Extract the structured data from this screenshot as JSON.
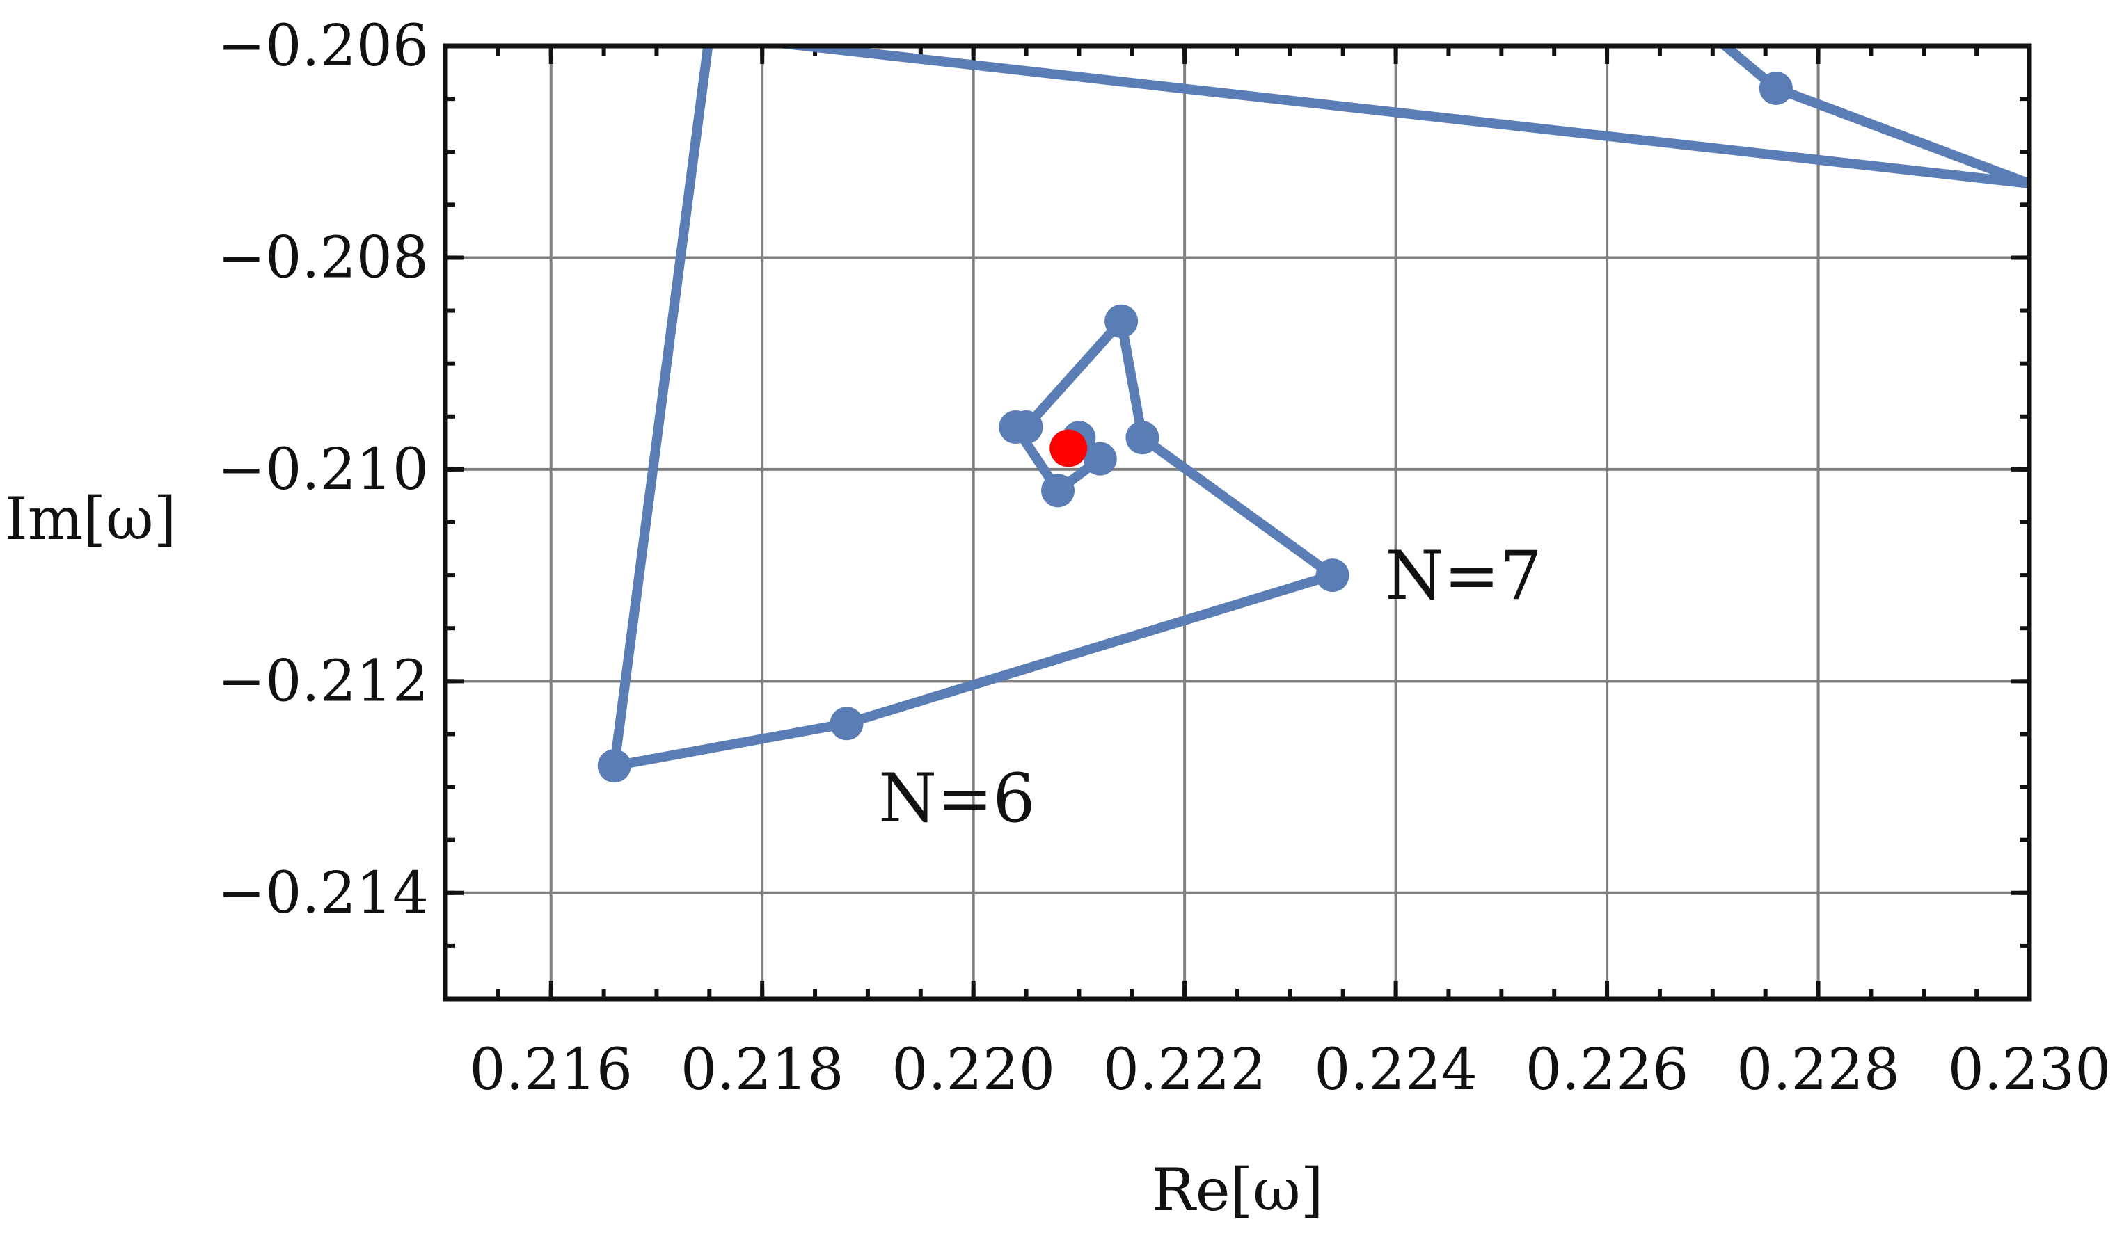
{
  "chart_data": {
    "type": "line",
    "title": "",
    "xlabel": "Re[ω]",
    "ylabel": "Im[ω]",
    "xlim": [
      0.215,
      0.23
    ],
    "ylim": [
      -0.215,
      -0.206
    ],
    "x_ticks": [
      0.216,
      0.218,
      0.22,
      0.222,
      0.224,
      0.226,
      0.228,
      0.23
    ],
    "x_tick_labels": [
      "0.216",
      "0.218",
      "0.220",
      "0.222",
      "0.224",
      "0.226",
      "0.228",
      "0.230"
    ],
    "y_ticks": [
      -0.206,
      -0.208,
      -0.21,
      -0.212,
      -0.214
    ],
    "y_tick_labels": [
      "−0.206",
      "−0.208",
      "−0.210",
      "−0.212",
      "−0.214"
    ],
    "grid": true,
    "series": [
      {
        "color": "#5b7db5",
        "points": [
          {
            "x": 0.2317,
            "y": -0.2055
          },
          {
            "x": 0.227,
            "y": -0.2059
          },
          {
            "x": 0.2276,
            "y": -0.2064
          },
          {
            "x": 0.23,
            "y": -0.2073
          },
          {
            "x": 0.23,
            "y": -0.2073
          },
          {
            "x": 0.2175,
            "y": -0.2059
          },
          {
            "x": 0.2166,
            "y": -0.2128
          },
          {
            "x": 0.2188,
            "y": -0.2124
          },
          {
            "x": 0.2234,
            "y": -0.211
          },
          {
            "x": 0.2216,
            "y": -0.2097
          },
          {
            "x": 0.2214,
            "y": -0.2086
          },
          {
            "x": 0.2205,
            "y": -0.2096
          },
          {
            "x": 0.2204,
            "y": -0.2096
          },
          {
            "x": 0.2208,
            "y": -0.2102
          },
          {
            "x": 0.2212,
            "y": -0.2099
          },
          {
            "x": 0.221,
            "y": -0.2097
          }
        ],
        "markers": [
          {
            "x": 0.2276,
            "y": -0.2064
          },
          {
            "x": 0.2166,
            "y": -0.2128
          },
          {
            "x": 0.2188,
            "y": -0.2124
          },
          {
            "x": 0.2234,
            "y": -0.211
          },
          {
            "x": 0.2216,
            "y": -0.2097
          },
          {
            "x": 0.2214,
            "y": -0.2086
          },
          {
            "x": 0.2205,
            "y": -0.2096
          },
          {
            "x": 0.2204,
            "y": -0.2096
          },
          {
            "x": 0.2208,
            "y": -0.2102
          },
          {
            "x": 0.2212,
            "y": -0.2099
          },
          {
            "x": 0.221,
            "y": -0.2097
          }
        ]
      }
    ],
    "highlight_point": {
      "x": 0.2209,
      "y": -0.2098,
      "color": "#ff0000"
    },
    "annotations": [
      {
        "text": "N=7",
        "x": 0.2239,
        "y": -0.211
      },
      {
        "text": "N=6",
        "x": 0.2191,
        "y": -0.2131
      }
    ]
  }
}
